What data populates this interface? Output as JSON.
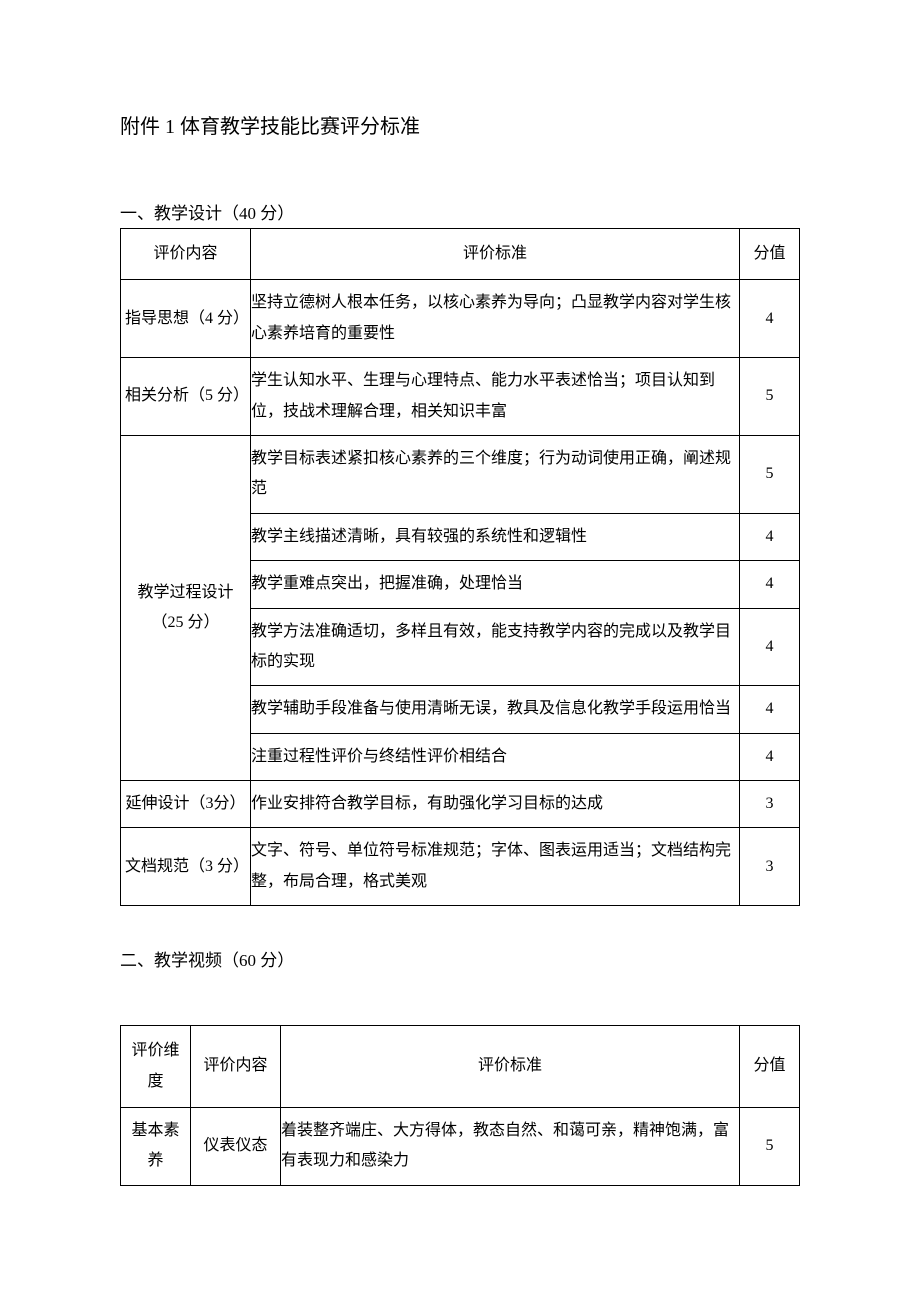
{
  "title": "附件 1 体育教学技能比赛评分标准",
  "section1": {
    "heading": "一、教学设计（40 分）",
    "headers": {
      "content": "评价内容",
      "standard": "评价标准",
      "score": "分值"
    },
    "rows": [
      {
        "content": "指导思想（4 分）",
        "standard": "坚持立德树人根本任务，以核心素养为导向；凸显教学内容对学生核心素养培育的重要性",
        "score": "4"
      },
      {
        "content": "相关分析（5 分）",
        "standard": "学生认知水平、生理与心理特点、能力水平表述恰当；项目认知到位，技战术理解合理，相关知识丰富",
        "score": "5"
      },
      {
        "content": "教学过程设计（25 分）",
        "sub": [
          {
            "standard": "教学目标表述紧扣核心素养的三个维度；行为动词使用正确，阐述规范",
            "score": "5"
          },
          {
            "standard": "教学主线描述清晰，具有较强的系统性和逻辑性",
            "score": "4"
          },
          {
            "standard": "教学重难点突出，把握准确，处理恰当",
            "score": "4"
          },
          {
            "standard": "教学方法准确适切，多样且有效，能支持教学内容的完成以及教学目标的实现",
            "score": "4"
          },
          {
            "standard": "教学辅助手段准备与使用清晰无误，教具及信息化教学手段运用恰当",
            "score": "4"
          },
          {
            "standard": "注重过程性评价与终结性评价相结合",
            "score": "4"
          }
        ]
      },
      {
        "content": "延伸设计（3分）",
        "standard": "作业安排符合教学目标，有助强化学习目标的达成",
        "score": "3"
      },
      {
        "content": "文档规范（3 分）",
        "standard": "文字、符号、单位符号标准规范；字体、图表运用适当；文档结构完整，布局合理，格式美观",
        "score": "3"
      }
    ]
  },
  "section2": {
    "heading": "二、教学视频（60 分）",
    "headers": {
      "dimension": "评价维度",
      "content": "评价内容",
      "standard": "评价标准",
      "score": "分值"
    },
    "rows": [
      {
        "dimension": "基本素养",
        "content": "仪表仪态",
        "standard": "着装整齐端庄、大方得体，教态自然、和蔼可亲，精神饱满，富有表现力和感染力",
        "score": "5"
      }
    ]
  },
  "style": {
    "background_color": "#ffffff",
    "text_color": "#000000",
    "border_color": "#000000",
    "title_fontsize": 20,
    "body_fontsize": 16,
    "heading_fontsize": 17,
    "font_family": "SimSun"
  }
}
